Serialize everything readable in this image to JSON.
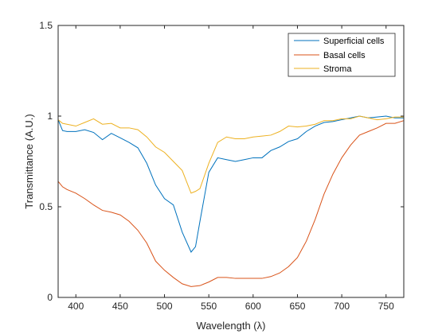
{
  "chart_data": {
    "type": "line",
    "xlabel": "Wavelength (λ)",
    "ylabel": "Transmittance (A.U.)",
    "xlim": [
      380,
      770
    ],
    "ylim": [
      0,
      1.5
    ],
    "xticks": [
      400,
      450,
      500,
      550,
      600,
      650,
      700,
      750
    ],
    "yticks": [
      0,
      0.5,
      1,
      1.5
    ],
    "xtick_labels": [
      "400",
      "450",
      "500",
      "550",
      "600",
      "650",
      "700",
      "750"
    ],
    "ytick_labels": [
      "0",
      "0.5",
      "1",
      "1.5"
    ],
    "grid": false,
    "legend_position": "top-right",
    "series": [
      {
        "name": "Superficial cells",
        "color": "#0072BD",
        "x": [
          380,
          385,
          390,
          400,
          410,
          420,
          430,
          440,
          450,
          460,
          470,
          480,
          490,
          500,
          510,
          520,
          530,
          535,
          540,
          550,
          560,
          570,
          580,
          590,
          600,
          610,
          620,
          630,
          640,
          650,
          660,
          670,
          680,
          690,
          700,
          710,
          720,
          730,
          740,
          750,
          760,
          770
        ],
        "y": [
          0.98,
          0.92,
          0.915,
          0.915,
          0.925,
          0.91,
          0.87,
          0.905,
          0.88,
          0.855,
          0.825,
          0.74,
          0.62,
          0.545,
          0.51,
          0.36,
          0.25,
          0.28,
          0.42,
          0.69,
          0.77,
          0.76,
          0.75,
          0.76,
          0.77,
          0.77,
          0.81,
          0.83,
          0.86,
          0.875,
          0.915,
          0.945,
          0.965,
          0.97,
          0.98,
          0.99,
          1.0,
          0.99,
          0.995,
          1.0,
          0.99,
          0.99
        ]
      },
      {
        "name": "Basal cells",
        "color": "#D95319",
        "x": [
          380,
          385,
          390,
          400,
          410,
          420,
          430,
          440,
          450,
          460,
          470,
          480,
          490,
          500,
          510,
          520,
          530,
          540,
          550,
          560,
          570,
          580,
          590,
          600,
          610,
          620,
          630,
          640,
          650,
          660,
          670,
          680,
          690,
          700,
          710,
          720,
          730,
          740,
          750,
          760,
          770
        ],
        "y": [
          0.64,
          0.61,
          0.595,
          0.575,
          0.545,
          0.51,
          0.48,
          0.47,
          0.455,
          0.42,
          0.37,
          0.3,
          0.2,
          0.15,
          0.11,
          0.075,
          0.06,
          0.065,
          0.085,
          0.11,
          0.11,
          0.105,
          0.105,
          0.105,
          0.105,
          0.115,
          0.135,
          0.17,
          0.22,
          0.31,
          0.43,
          0.57,
          0.68,
          0.77,
          0.84,
          0.895,
          0.915,
          0.935,
          0.96,
          0.96,
          0.975
        ]
      },
      {
        "name": "Stroma",
        "color": "#EDB120",
        "x": [
          380,
          385,
          390,
          400,
          410,
          420,
          430,
          440,
          450,
          460,
          470,
          480,
          490,
          500,
          510,
          520,
          530,
          535,
          540,
          550,
          560,
          570,
          580,
          590,
          600,
          610,
          620,
          630,
          640,
          650,
          660,
          670,
          680,
          690,
          700,
          710,
          720,
          730,
          740,
          750,
          760,
          770
        ],
        "y": [
          0.98,
          0.96,
          0.955,
          0.945,
          0.965,
          0.985,
          0.955,
          0.96,
          0.935,
          0.935,
          0.925,
          0.885,
          0.83,
          0.8,
          0.75,
          0.7,
          0.575,
          0.585,
          0.6,
          0.74,
          0.855,
          0.885,
          0.875,
          0.875,
          0.885,
          0.89,
          0.895,
          0.915,
          0.945,
          0.94,
          0.945,
          0.955,
          0.975,
          0.975,
          0.985,
          0.985,
          1.0,
          0.99,
          0.98,
          0.985,
          0.995,
          0.995
        ]
      }
    ]
  }
}
